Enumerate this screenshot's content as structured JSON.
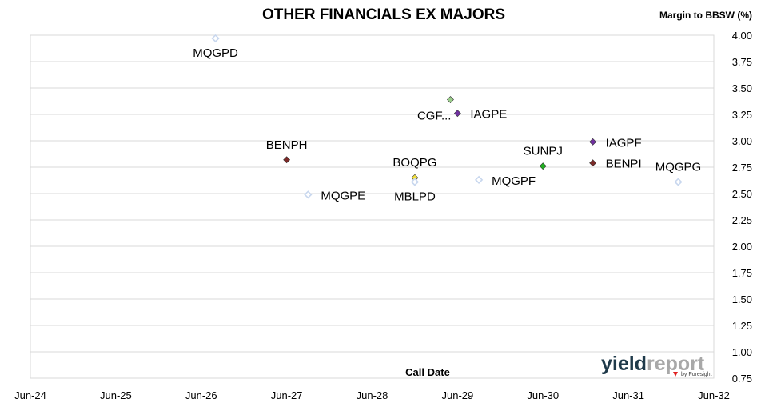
{
  "chart_data": {
    "type": "scatter",
    "title": "OTHER FINANCIALS EX MAJORS",
    "ylabel": "Margin to BBSW (%)",
    "xlabel": "Call Date",
    "ylim": [
      0.75,
      4.0
    ],
    "y_ticks": [
      "0.75",
      "1.00",
      "1.25",
      "1.50",
      "1.75",
      "2.00",
      "2.25",
      "2.50",
      "2.75",
      "3.00",
      "3.25",
      "3.50",
      "3.75",
      "4.00"
    ],
    "xlim": [
      "2024-06",
      "2032-06"
    ],
    "x_ticks": [
      "Jun-24",
      "Jun-25",
      "Jun-26",
      "Jun-27",
      "Jun-28",
      "Jun-29",
      "Jun-30",
      "Jun-31",
      "Jun-32"
    ],
    "grid": "horizontal",
    "points": [
      {
        "label": "MQGPD",
        "x": "2026-08",
        "y": 3.97,
        "color": "#c8d7ee",
        "filled": false,
        "label_pos": "below"
      },
      {
        "label": "BENPH",
        "x": "2027-06",
        "y": 2.82,
        "color": "#7b2a28",
        "filled": true,
        "label_pos": "above"
      },
      {
        "label": "MQGPE",
        "x": "2027-09",
        "y": 2.49,
        "color": "#c8d7ee",
        "filled": false,
        "label_pos": "right"
      },
      {
        "label": "BOQPG",
        "x": "2028-12",
        "y": 2.65,
        "color": "#f5e23c",
        "filled": true,
        "label_pos": "above"
      },
      {
        "label": "MBLPD",
        "x": "2028-12",
        "y": 2.61,
        "color": "#c8d7ee",
        "filled": false,
        "label_pos": "below"
      },
      {
        "label": "CGF...",
        "x": "2029-05",
        "y": 3.39,
        "color": "#9acd8a",
        "filled": true,
        "label_pos": "below-left"
      },
      {
        "label": "IAGPE",
        "x": "2029-06",
        "y": 3.26,
        "color": "#7030a0",
        "filled": true,
        "label_pos": "right"
      },
      {
        "label": "MQGPF",
        "x": "2029-09",
        "y": 2.63,
        "color": "#c8d7ee",
        "filled": false,
        "label_pos": "right"
      },
      {
        "label": "SUNPJ",
        "x": "2030-06",
        "y": 2.76,
        "color": "#1fb01f",
        "filled": true,
        "label_pos": "above"
      },
      {
        "label": "IAGPF",
        "x": "2031-01",
        "y": 2.99,
        "color": "#7030a0",
        "filled": true,
        "label_pos": "right"
      },
      {
        "label": "BENPI",
        "x": "2031-01",
        "y": 2.79,
        "color": "#7b2a28",
        "filled": true,
        "label_pos": "right"
      },
      {
        "label": "MQGPG",
        "x": "2032-01",
        "y": 2.61,
        "color": "#c8d7ee",
        "filled": false,
        "label_pos": "above"
      }
    ]
  },
  "logo": {
    "main_dark": "yield",
    "main_light": "report",
    "sub": "by Foresight",
    "dark_color": "#1f3a4a",
    "light_color": "#a8a8a8",
    "accent": "#e02020"
  }
}
